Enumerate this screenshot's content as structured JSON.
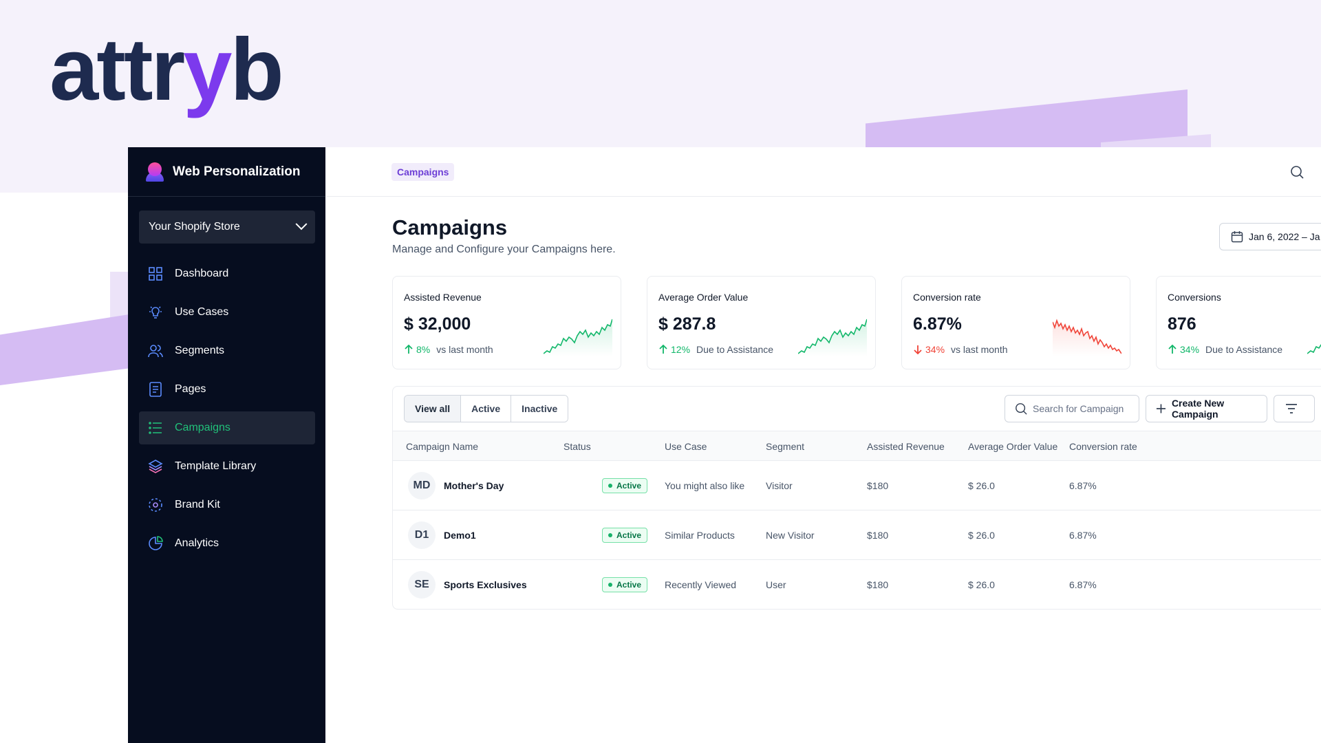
{
  "brand": {
    "logo_prefix": "attr",
    "logo_y": "y",
    "logo_suffix": "b",
    "accent": "#7c3aed",
    "dark": "#1e2b4f"
  },
  "sidebar": {
    "title": "Web Personalization",
    "store": "Your Shopify Store",
    "items": [
      {
        "label": "Dashboard",
        "icon": "grid-icon"
      },
      {
        "label": "Use Cases",
        "icon": "lightbulb-icon"
      },
      {
        "label": "Segments",
        "icon": "users-icon"
      },
      {
        "label": "Pages",
        "icon": "page-icon"
      },
      {
        "label": "Campaigns",
        "icon": "list-icon",
        "active": true
      },
      {
        "label": "Template Library",
        "icon": "layers-icon"
      },
      {
        "label": "Brand Kit",
        "icon": "brand-kit-icon"
      },
      {
        "label": "Analytics",
        "icon": "pie-chart-icon"
      }
    ]
  },
  "header": {
    "breadcrumb": "Campaigns",
    "title": "Campaigns",
    "subtitle": "Manage and Configure your Campaigns here.",
    "date_range": "Jan 6, 2022 – Ja"
  },
  "cards": [
    {
      "label": "Assisted Revenue",
      "value": "$ 32,000",
      "delta": "8%",
      "note": "vs last month",
      "direction": "up"
    },
    {
      "label": "Average Order Value",
      "value": "$ 287.8",
      "delta": "12%",
      "note": "Due to Assistance",
      "direction": "up"
    },
    {
      "label": "Conversion rate",
      "value": "6.87%",
      "delta": "34%",
      "note": "vs last month",
      "direction": "down"
    },
    {
      "label": "Conversions",
      "value": "876",
      "delta": "34%",
      "note": "Due to Assistance",
      "direction": "up"
    }
  ],
  "table": {
    "filters": [
      "View all",
      "Active",
      "Inactive"
    ],
    "search_placeholder": "Search for Campaign",
    "create_label": "Create New Campaign",
    "columns": [
      "Campaign Name",
      "Status",
      "Use Case",
      "Segment",
      "Assisted Revenue",
      "Average Order Value",
      "Conversion rate"
    ],
    "rows": [
      {
        "initials": "MD",
        "name": "Mother's Day",
        "status": "Active",
        "use_case": "You might also like",
        "segment": "Visitor",
        "revenue": "$180",
        "aov": "$ 26.0",
        "conversion": "6.87%"
      },
      {
        "initials": "D1",
        "name": "Demo1",
        "status": "Active",
        "use_case": "Similar Products",
        "segment": "New Visitor",
        "revenue": "$180",
        "aov": "$ 26.0",
        "conversion": "6.87%"
      },
      {
        "initials": "SE",
        "name": "Sports Exclusives",
        "status": "Active",
        "use_case": "Recently Viewed",
        "segment": "User",
        "revenue": "$180",
        "aov": "$ 26.0",
        "conversion": "6.87%"
      }
    ]
  }
}
